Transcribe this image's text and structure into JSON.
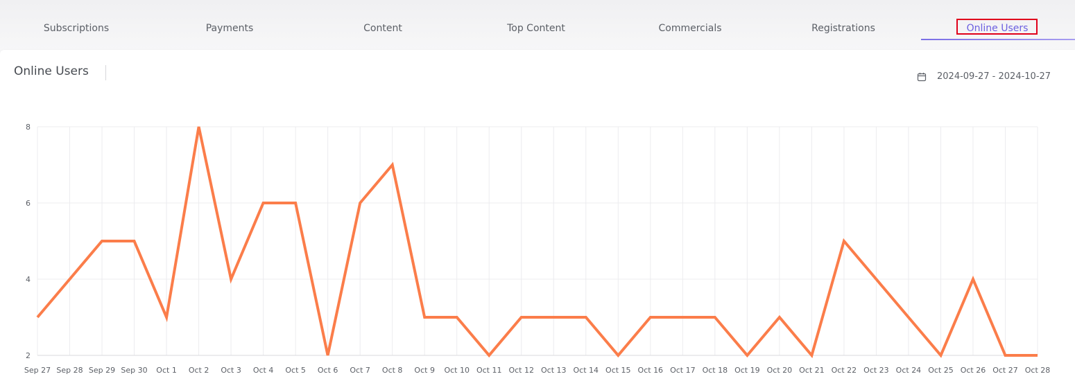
{
  "tabs": [
    {
      "label": "Subscriptions"
    },
    {
      "label": "Payments"
    },
    {
      "label": "Content"
    },
    {
      "label": "Top Content"
    },
    {
      "label": "Commercials"
    },
    {
      "label": "Registrations"
    },
    {
      "label": "Online Users",
      "active": true
    }
  ],
  "card": {
    "title": "Online Users",
    "date_range": "2024-09-27 - 2024-10-27",
    "date_icon": "calendar-icon"
  },
  "colors": {
    "accent": "#6b5fe0",
    "line": "#fb7d4a",
    "highlight_box": "#e0001b"
  },
  "chart_data": {
    "type": "line",
    "categories": [
      "Sep 27",
      "Sep 28",
      "Sep 29",
      "Sep 30",
      "Oct 1",
      "Oct 2",
      "Oct 3",
      "Oct 4",
      "Oct 5",
      "Oct 6",
      "Oct 7",
      "Oct 8",
      "Oct 9",
      "Oct 10",
      "Oct 11",
      "Oct 12",
      "Oct 13",
      "Oct 14",
      "Oct 15",
      "Oct 16",
      "Oct 17",
      "Oct 18",
      "Oct 19",
      "Oct 20",
      "Oct 21",
      "Oct 22",
      "Oct 23",
      "Oct 24",
      "Oct 25",
      "Oct 26",
      "Oct 27",
      "Oct 28"
    ],
    "values": [
      3,
      4,
      5,
      5,
      3,
      8,
      4,
      6,
      6,
      2,
      6,
      7,
      3,
      3,
      2,
      3,
      3,
      3,
      2,
      3,
      3,
      3,
      2,
      3,
      2,
      5,
      4,
      3,
      2,
      4,
      2,
      2
    ],
    "yticks": [
      2,
      4,
      6,
      8
    ],
    "ylim": [
      2,
      8
    ],
    "grid": true
  }
}
